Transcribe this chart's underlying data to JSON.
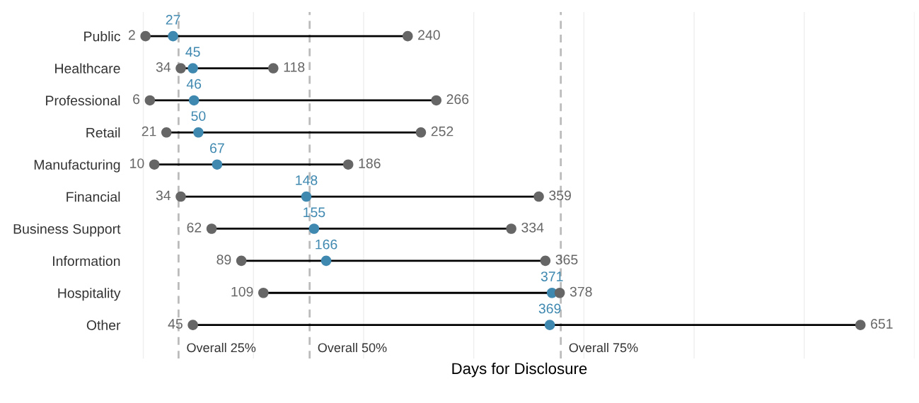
{
  "chart_data": {
    "type": "scatter",
    "orientation": "horizontal",
    "xlabel": "Days for Disclosure",
    "categories": [
      "Public",
      "Healthcare",
      "Professional",
      "Retail",
      "Manufacturing",
      "Financial",
      "Business Support",
      "Information",
      "Hospitality",
      "Other"
    ],
    "series": [
      {
        "color": "#666666",
        "values": [
          2,
          34,
          6,
          21,
          10,
          34,
          62,
          89,
          109,
          45
        ]
      },
      {
        "color": "#3f88b0",
        "values": [
          27,
          45,
          46,
          50,
          67,
          148,
          155,
          166,
          371,
          369
        ]
      },
      {
        "color": "#666666",
        "values": [
          240,
          118,
          266,
          252,
          186,
          359,
          334,
          365,
          378,
          651
        ]
      }
    ],
    "data_labels": true,
    "marker": "circle",
    "grid": "x",
    "legend": false,
    "tick_labels": "y",
    "xticks": [
      {
        "value": 0,
        "label": null
      },
      {
        "value": 100,
        "label": null
      },
      {
        "value": 200,
        "label": null
      },
      {
        "value": 300,
        "label": null
      },
      {
        "value": 400,
        "label": null
      },
      {
        "value": 500,
        "label": null
      },
      {
        "value": 600,
        "label": null
      },
      {
        "value": 700,
        "label": null
      }
    ],
    "ref_lines": [
      {
        "axis": "x",
        "value": 32,
        "label": "Overall 25%",
        "color": "#bbbbbb",
        "line_style": "dashed"
      },
      {
        "axis": "x",
        "value": 151,
        "label": "Overall 50%",
        "color": "#bbbbbb",
        "line_style": "dashed"
      },
      {
        "axis": "x",
        "value": 379,
        "label": "Overall 75%",
        "color": "#bbbbbb",
        "line_style": "dashed"
      }
    ]
  }
}
